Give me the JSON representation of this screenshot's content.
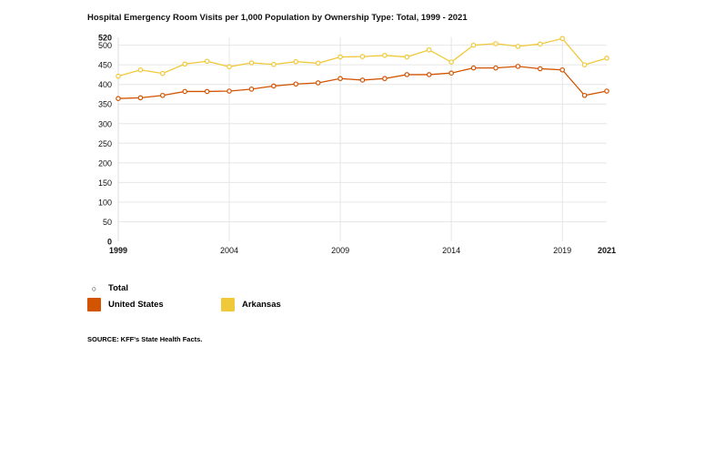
{
  "chart_data": {
    "type": "line",
    "title": "Hospital Emergency Room Visits per 1,000 Population by Ownership Type: Total, 1999 - 2021",
    "x": [
      1999,
      2000,
      2001,
      2002,
      2003,
      2004,
      2005,
      2006,
      2007,
      2008,
      2009,
      2010,
      2011,
      2012,
      2013,
      2014,
      2015,
      2016,
      2017,
      2018,
      2019,
      2020,
      2021
    ],
    "x_ticks": [
      "1999",
      "2004",
      "2009",
      "2014",
      "2019",
      "2021"
    ],
    "y_ticks": [
      "0",
      "50",
      "100",
      "150",
      "200",
      "250",
      "300",
      "350",
      "400",
      "450",
      "500",
      "520"
    ],
    "ylim": [
      0,
      520
    ],
    "grid": true,
    "series": [
      {
        "name": "United States",
        "color": "#d35400",
        "values": [
          364,
          366,
          372,
          382,
          382,
          383,
          388,
          396,
          401,
          404,
          415,
          411,
          415,
          425,
          425,
          429,
          442,
          442,
          446,
          440,
          437,
          372,
          383
        ]
      },
      {
        "name": "Arkansas",
        "color": "#f0c93a",
        "values": [
          421,
          437,
          428,
          452,
          459,
          445,
          455,
          451,
          458,
          454,
          470,
          471,
          474,
          470,
          488,
          457,
          500,
          504,
          497,
          503,
          517,
          450,
          467
        ]
      }
    ],
    "legend_group": "Total",
    "legend_placement": "bottom-left",
    "source": "SOURCE: KFF's State Health Facts."
  }
}
